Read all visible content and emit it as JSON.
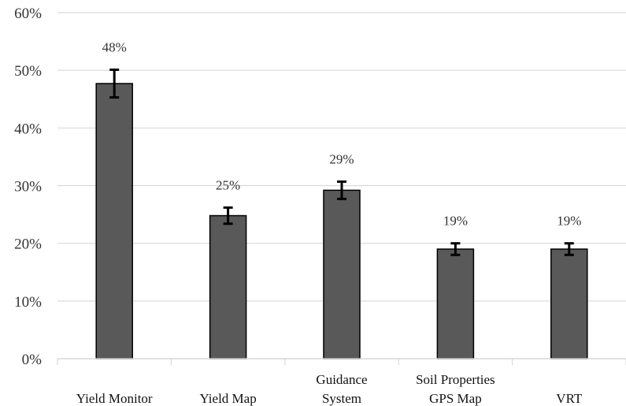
{
  "chart_data": {
    "type": "bar",
    "categories": [
      [
        "Yield Monitor"
      ],
      [
        "Yield Map"
      ],
      [
        "Guidance",
        "System"
      ],
      [
        "Soil Properties",
        "GPS Map"
      ],
      [
        "VRT"
      ]
    ],
    "values": [
      0.477,
      0.248,
      0.292,
      0.19,
      0.19
    ],
    "error": [
      0.024,
      0.014,
      0.015,
      0.01,
      0.01
    ],
    "data_labels": [
      "48%",
      "25%",
      "29%",
      "19%",
      "19%"
    ],
    "y_ticks": [
      "0%",
      "10%",
      "20%",
      "30%",
      "40%",
      "50%",
      "60%"
    ],
    "ylim": [
      0,
      0.6
    ],
    "grid": true,
    "legend": "none",
    "colors": {
      "bar_fill": "#595959",
      "bar_stroke": "#000000",
      "grid": "#d9d9d9",
      "error_bar": "#000000"
    }
  }
}
